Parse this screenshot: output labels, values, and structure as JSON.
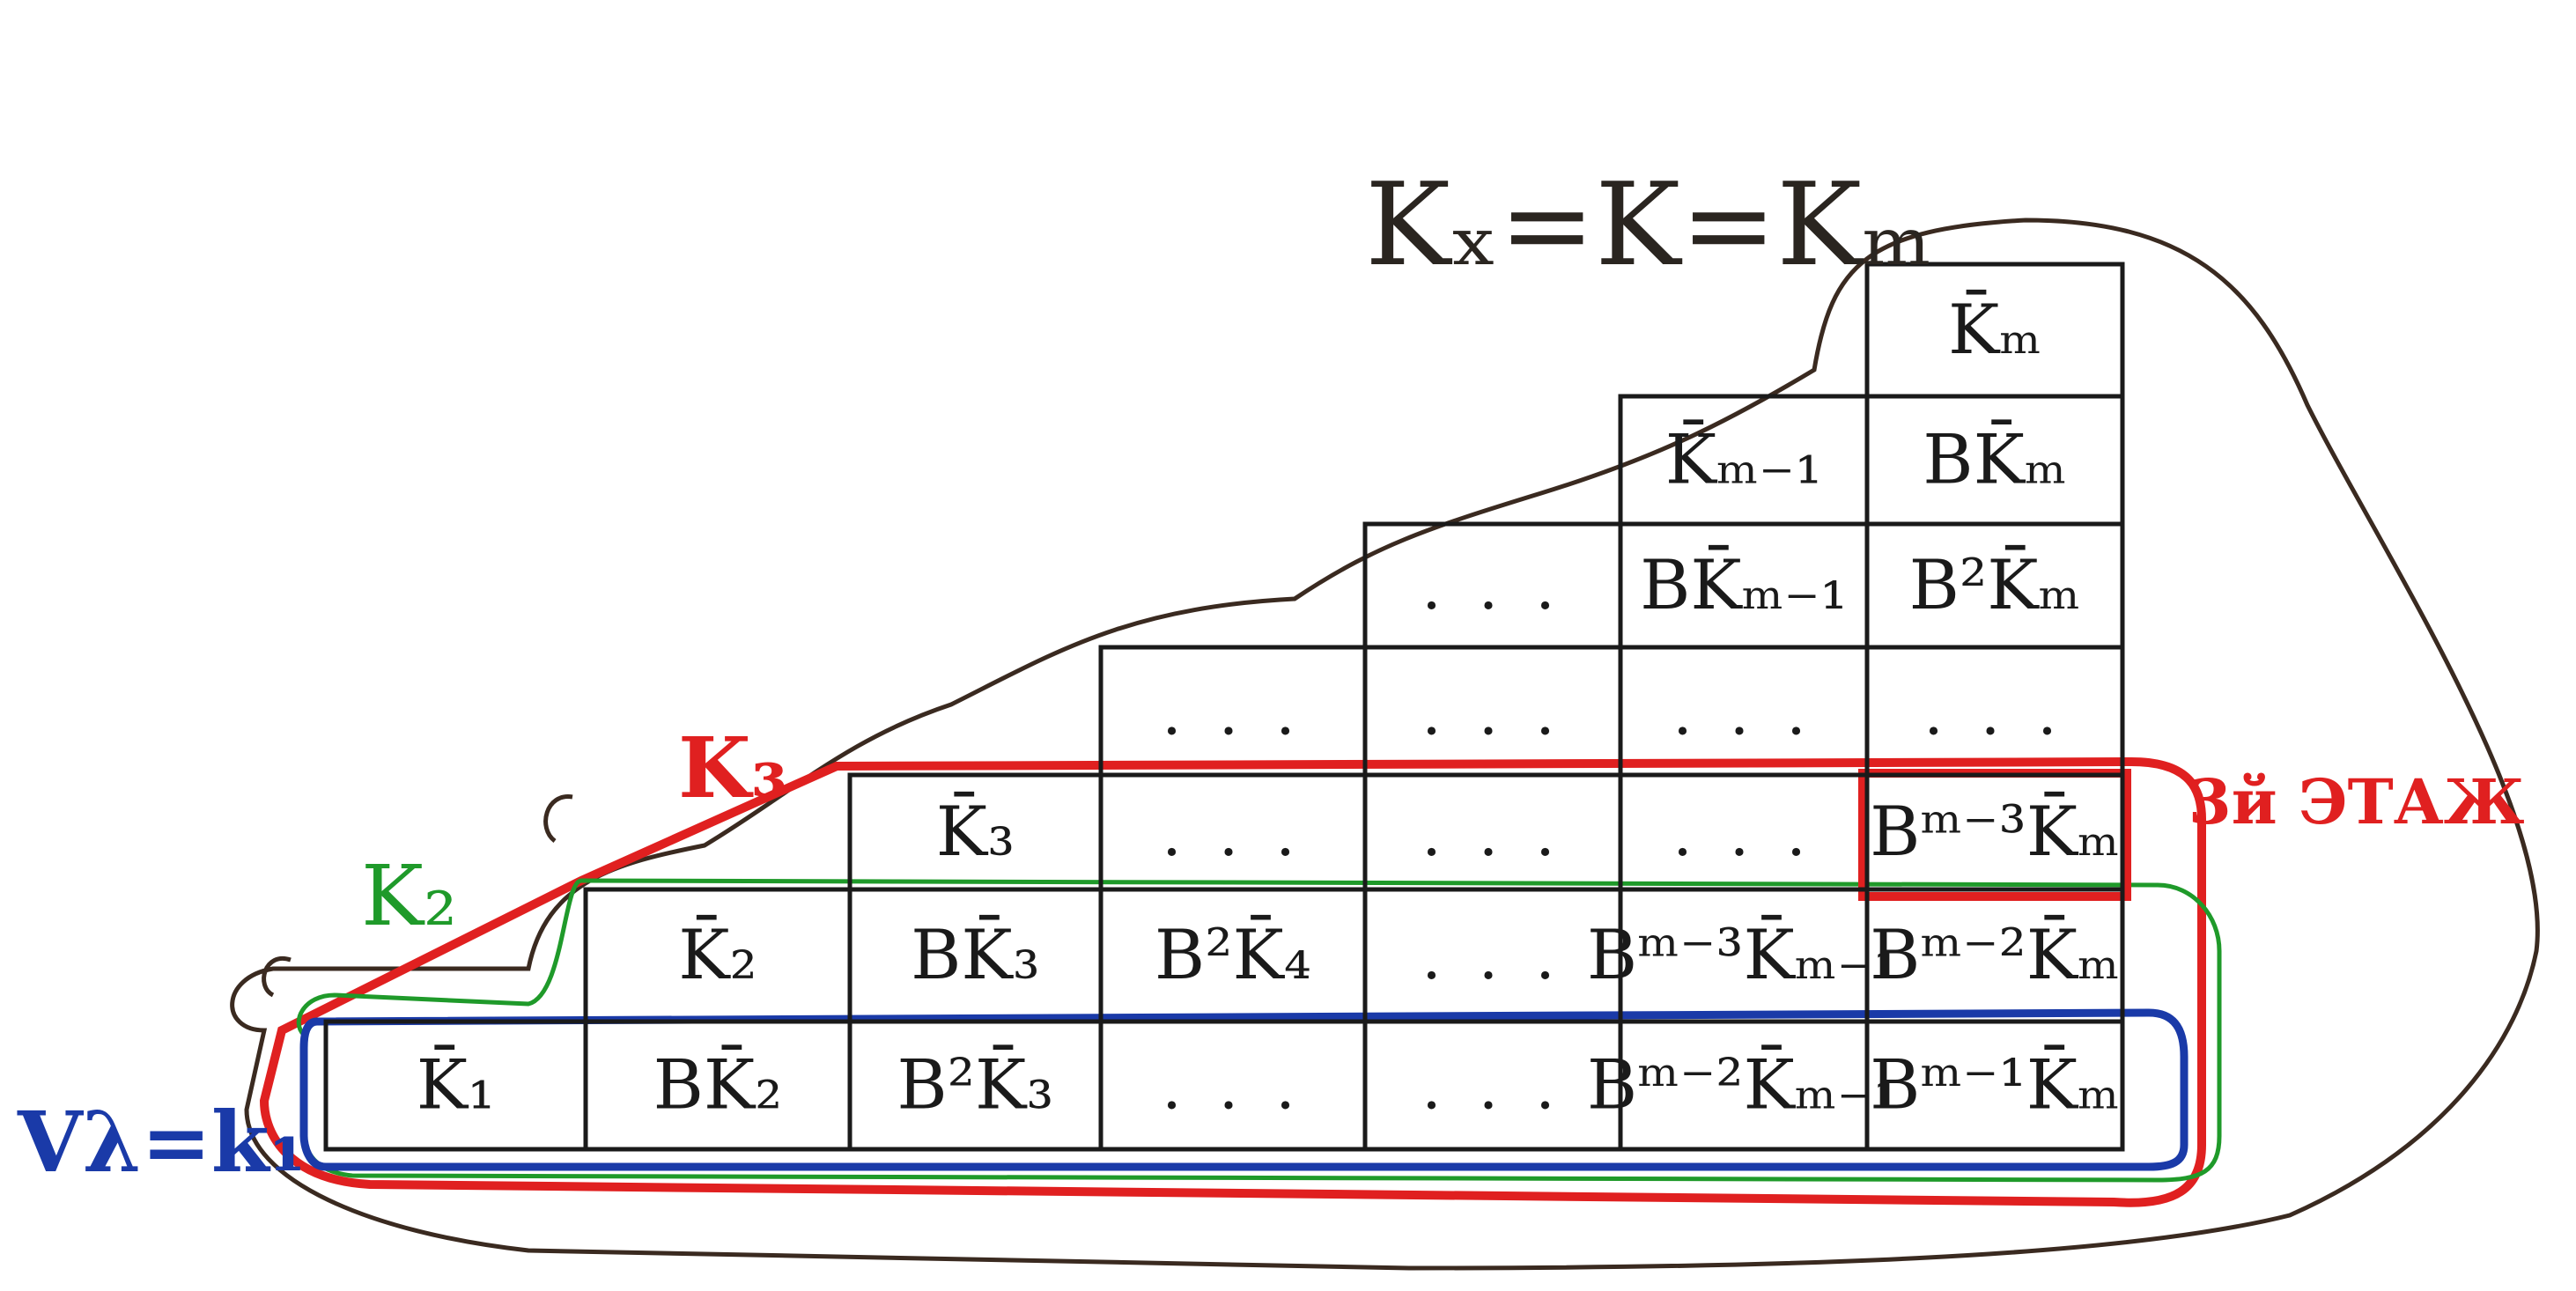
{
  "title": "Kₓ=K=Kₘ",
  "labels": {
    "v_lambda": "Vλ=k₁",
    "k2": "K₂",
    "k3": "K₃",
    "floor": "3й ЭТАЖ"
  },
  "colors": {
    "ink": "#1a1a1a",
    "outline": "#3a2a20",
    "blue": "#1a3aa8",
    "green": "#1f9a2a",
    "red": "#e02020"
  },
  "rows": [
    [
      "K̄ₘ"
    ],
    [
      "K̄ₘ₋₁",
      "ΒK̄ₘ"
    ],
    [
      "...",
      "ΒK̄ₘ₋₁",
      "Β²K̄ₘ"
    ],
    [
      "...",
      "...",
      "...",
      "..."
    ],
    [
      "K̄₃",
      "...",
      "...",
      "...",
      "Βᵐ⁻³K̄ₘ"
    ],
    [
      "K̄₂",
      "ΒK̄₃",
      "Β²K̄₄",
      "...",
      "Βᵐ⁻³K̄ₘ₋₁",
      "Βᵐ⁻²K̄ₘ"
    ],
    [
      "K̄₁",
      "ΒK̄₂",
      "Β²K̄₃",
      "...",
      "...",
      "Βᵐ⁻²K̄ₘ₋₁",
      "Βᵐ⁻¹K̄ₘ"
    ]
  ]
}
